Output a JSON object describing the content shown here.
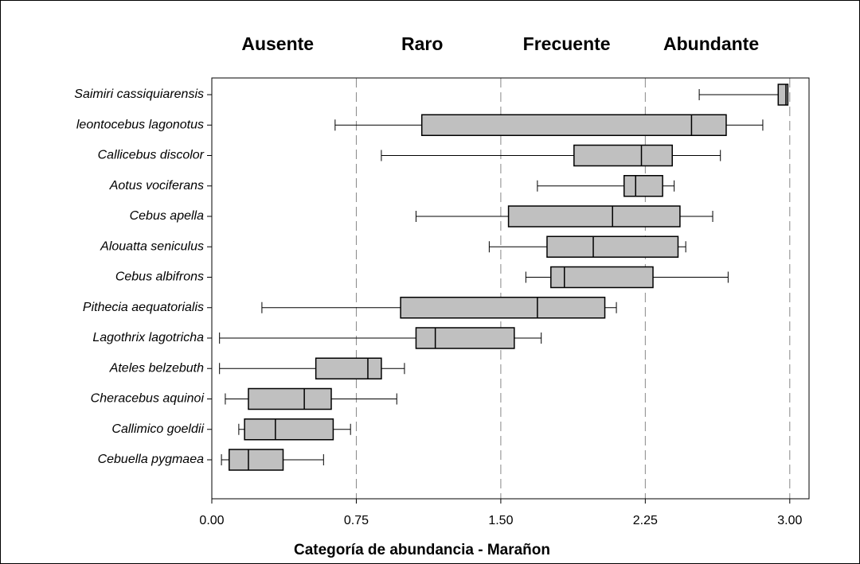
{
  "chart_data": {
    "type": "box",
    "orientation": "horizontal",
    "x_label": "Categoría de abundancia - Marañon",
    "annotations": [
      "Ausente",
      "Raro",
      "Frecuente",
      "Abundante"
    ],
    "categories": [
      "Saimiri cassiquiarensis",
      "leontocebus lagonotus",
      "Callicebus discolor",
      "Aotus vociferans",
      "Cebus apella",
      "Alouatta seniculus",
      "Cebus albifrons",
      "Pithecia aequatorialis",
      "Lagothrix lagotricha",
      "Ateles belzebuth",
      "Cheracebus aquinoi",
      "Callimico goeldii",
      "Cebuella pygmaea"
    ],
    "values": [
      [
        2.53,
        2.94,
        2.98,
        2.99,
        2.99
      ],
      [
        0.64,
        1.09,
        2.49,
        2.67,
        2.86
      ],
      [
        0.88,
        1.88,
        2.23,
        2.39,
        2.64
      ],
      [
        1.69,
        2.14,
        2.2,
        2.34,
        2.4
      ],
      [
        1.06,
        1.54,
        2.08,
        2.43,
        2.6
      ],
      [
        1.44,
        1.74,
        1.98,
        2.42,
        2.46
      ],
      [
        1.63,
        1.76,
        1.83,
        2.29,
        2.68
      ],
      [
        0.26,
        0.98,
        1.69,
        2.04,
        2.1
      ],
      [
        0.04,
        1.06,
        1.16,
        1.57,
        1.71
      ],
      [
        0.04,
        0.54,
        0.81,
        0.88,
        1.0
      ],
      [
        0.07,
        0.19,
        0.48,
        0.62,
        0.96
      ],
      [
        0.14,
        0.17,
        0.33,
        0.63,
        0.72
      ],
      [
        0.05,
        0.09,
        0.19,
        0.37,
        0.58
      ]
    ],
    "color": "#c0c0c0",
    "xlim": [
      0,
      3.1
    ],
    "xticks": [
      {
        "value": 0,
        "label": "0.00"
      },
      {
        "value": 0.75,
        "label": "0.75"
      },
      {
        "value": 1.5,
        "label": "1.50"
      },
      {
        "value": 2.25,
        "label": "2.25"
      },
      {
        "value": 3,
        "label": "3.00"
      }
    ],
    "grid": true
  }
}
